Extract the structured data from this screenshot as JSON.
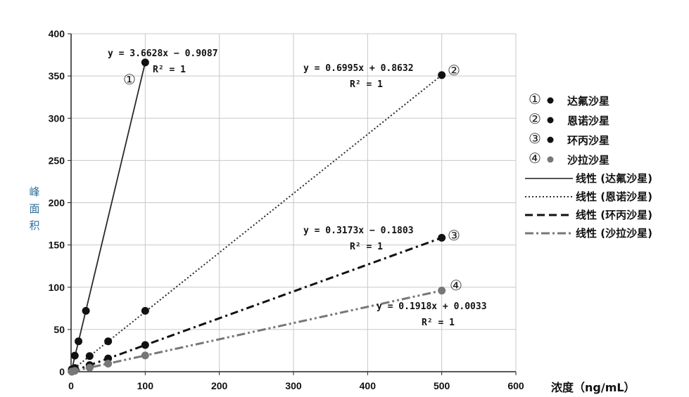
{
  "chart_data": {
    "type": "scatter",
    "xlabel": "浓度（ng/mL）",
    "ylabel": "峰面积",
    "xlim": [
      0,
      600
    ],
    "ylim": [
      0,
      400
    ],
    "xticks": [
      "0",
      "100",
      "200",
      "300",
      "400",
      "500",
      "600"
    ],
    "yticks": [
      "0",
      "50",
      "100",
      "150",
      "200",
      "250",
      "300",
      "350",
      "400"
    ],
    "grid": true,
    "legend_position": "right",
    "series": [
      {
        "name": "达氟沙星",
        "marker_label": "①",
        "color": "#111111",
        "fit_label": "线性 (达氟沙星)",
        "line_style": "solid",
        "x": [
          1,
          5,
          10,
          20,
          100
        ],
        "y": [
          2.8,
          19,
          36,
          72,
          366
        ],
        "equation": "y = 3.6628x − 0.9087",
        "r2": "R² = 1"
      },
      {
        "name": "恩诺沙星",
        "marker_label": "②",
        "color": "#111111",
        "fit_label": "线性 (恩诺沙星)",
        "line_style": "dotted",
        "x": [
          1,
          5,
          25,
          50,
          100,
          500
        ],
        "y": [
          1.6,
          4.4,
          18.5,
          36,
          72,
          351
        ],
        "equation": "y = 0.6995x + 0.8632",
        "r2": "R² = 1"
      },
      {
        "name": "环丙沙星",
        "marker_label": "③",
        "color": "#111111",
        "fit_label": "线性 (环丙沙星)",
        "line_style": "dashed",
        "x": [
          1,
          5,
          25,
          50,
          100,
          500
        ],
        "y": [
          0.1,
          1.4,
          7.8,
          15.7,
          31.6,
          158.5
        ],
        "equation": "y = 0.3173x − 0.1803",
        "r2": "R² = 1"
      },
      {
        "name": "沙拉沙星",
        "marker_label": "④",
        "color": "#777777",
        "fit_label": "线性 (沙拉沙星)",
        "line_style": "dashdot",
        "x": [
          1,
          5,
          25,
          50,
          100,
          500
        ],
        "y": [
          0.2,
          1.0,
          4.8,
          9.6,
          19.2,
          96
        ],
        "equation": "y = 0.1918x + 0.0033",
        "r2": "R² = 1"
      }
    ]
  }
}
